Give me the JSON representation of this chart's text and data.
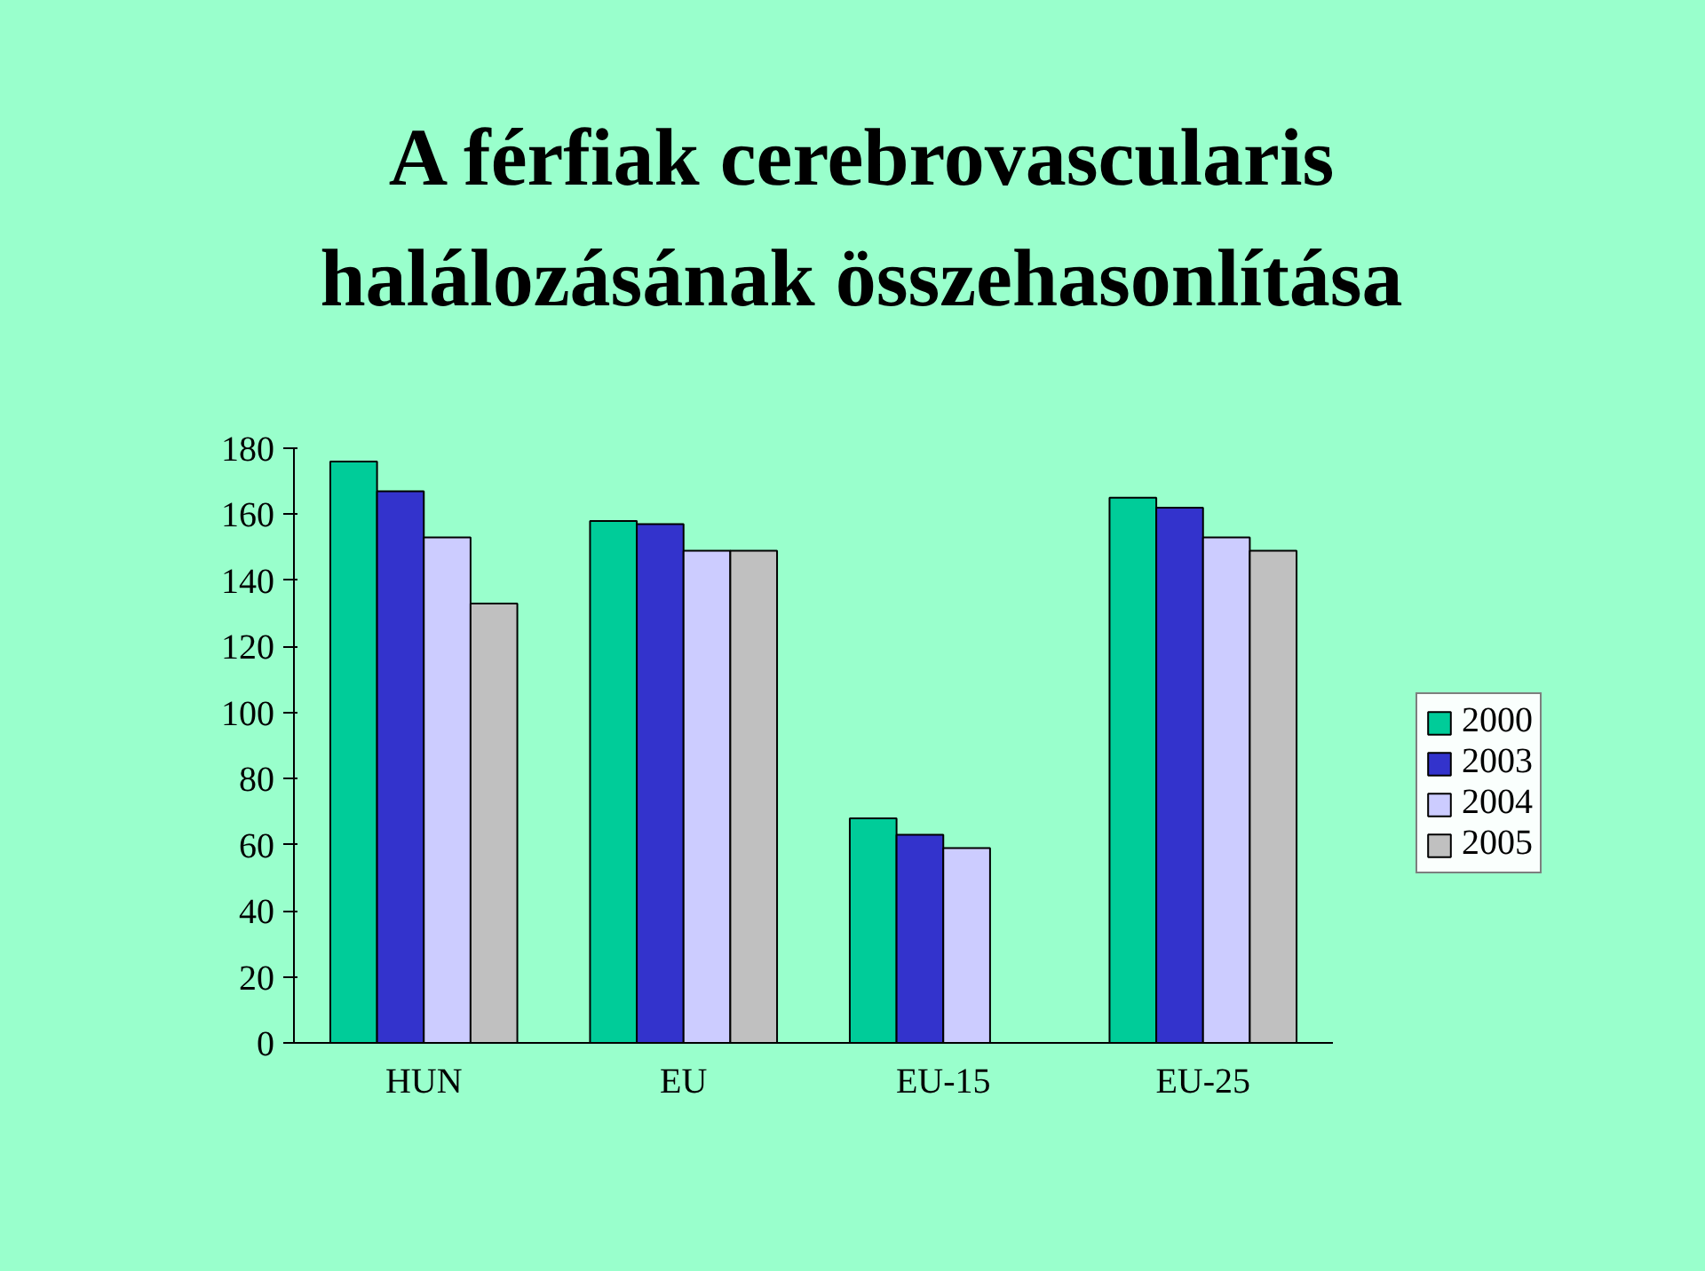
{
  "chart_data": {
    "type": "bar",
    "title": "A férfiak cerebrovascularis\nhalálozásának összehasonlítása",
    "categories": [
      "HUN",
      "EU",
      "EU-15",
      "EU-25"
    ],
    "series": [
      {
        "name": "2000",
        "color": "#00cc99",
        "values": [
          176,
          158,
          68,
          165
        ]
      },
      {
        "name": "2003",
        "color": "#3333cc",
        "values": [
          167,
          157,
          63,
          162
        ]
      },
      {
        "name": "2004",
        "color": "#ccccff",
        "values": [
          153,
          149,
          59,
          153
        ]
      },
      {
        "name": "2005",
        "color": "#c0c0c0",
        "values": [
          133,
          149,
          null,
          149
        ]
      }
    ],
    "ylim": [
      0,
      180
    ],
    "yticks": [
      0,
      20,
      40,
      60,
      80,
      100,
      120,
      140,
      160,
      180
    ],
    "grid": false,
    "legend": "right"
  }
}
